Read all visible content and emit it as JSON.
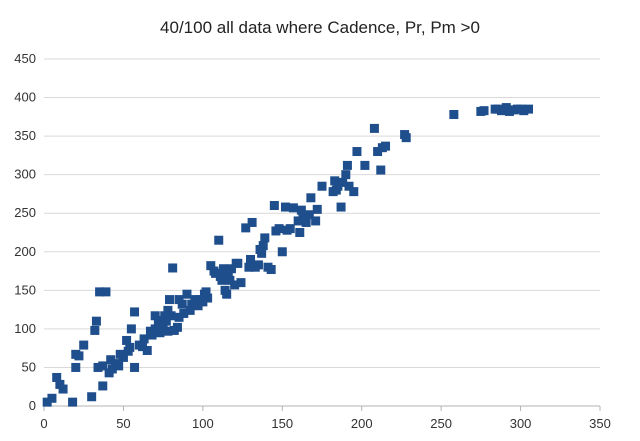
{
  "chart_data": {
    "type": "scatter",
    "title": "40/100 all data where Cadence, Pr, Pm >0",
    "xlabel": "",
    "ylabel": "",
    "xlim": [
      0,
      350
    ],
    "ylim": [
      0,
      450
    ],
    "x_ticks": [
      0,
      50,
      100,
      150,
      200,
      250,
      300,
      350
    ],
    "y_ticks": [
      0,
      50,
      100,
      150,
      200,
      250,
      300,
      350,
      400,
      450
    ],
    "grid": "horizontal",
    "legend": "none",
    "marker_color": "#1f4e8c",
    "series": [
      {
        "x": [
          2,
          5,
          8,
          10,
          12,
          18,
          20,
          20,
          22,
          25,
          30,
          32,
          33,
          34,
          35,
          37,
          37,
          39,
          41,
          42,
          43,
          45,
          47,
          48,
          50,
          52,
          53,
          54,
          55,
          57,
          57,
          60,
          62,
          63,
          65,
          67,
          68,
          70,
          70,
          72,
          73,
          75,
          76,
          77,
          78,
          78,
          79,
          80,
          81,
          82,
          84,
          85,
          85,
          87,
          88,
          90,
          92,
          93,
          95,
          97,
          98,
          100,
          101,
          102,
          103,
          105,
          107,
          108,
          110,
          111,
          112,
          113,
          114,
          115,
          116,
          117,
          118,
          120,
          121,
          122,
          124,
          127,
          129,
          130,
          131,
          133,
          135,
          136,
          137,
          138,
          139,
          141,
          143,
          145,
          146,
          148,
          150,
          152,
          153,
          155,
          157,
          160,
          161,
          162,
          163,
          165,
          167,
          168,
          171,
          172,
          175,
          182,
          183,
          184,
          185,
          187,
          188,
          190,
          191,
          192,
          195,
          197,
          202,
          208,
          210,
          212,
          213,
          215,
          227,
          228,
          258,
          275,
          277,
          284,
          286,
          288,
          291,
          293,
          296,
          298,
          300,
          302,
          305
        ],
        "y": [
          5,
          10,
          37,
          28,
          22,
          5,
          67,
          50,
          65,
          79,
          12,
          98,
          110,
          50,
          148,
          26,
          52,
          148,
          43,
          60,
          48,
          55,
          52,
          67,
          63,
          85,
          71,
          76,
          100,
          50,
          122,
          79,
          77,
          87,
          72,
          97,
          92,
          100,
          117,
          111,
          95,
          104,
          117,
          110,
          124,
          97,
          138,
          117,
          179,
          98,
          102,
          115,
          138,
          132,
          120,
          145,
          124,
          132,
          138,
          130,
          138,
          135,
          145,
          148,
          140,
          182,
          175,
          172,
          215,
          168,
          163,
          178,
          150,
          145,
          170,
          163,
          178,
          157,
          185,
          185,
          160,
          231,
          180,
          190,
          238,
          180,
          183,
          203,
          198,
          208,
          218,
          180,
          177,
          260,
          227,
          230,
          200,
          258,
          228,
          230,
          257,
          240,
          225,
          254,
          246,
          238,
          248,
          270,
          240,
          255,
          285,
          278,
          292,
          280,
          285,
          258,
          290,
          300,
          312,
          285,
          278,
          330,
          312,
          360,
          330,
          306,
          335,
          337,
          352,
          348,
          378,
          382,
          383,
          385,
          385,
          383,
          387,
          382,
          384,
          385,
          385,
          383,
          385
        ]
      }
    ]
  }
}
